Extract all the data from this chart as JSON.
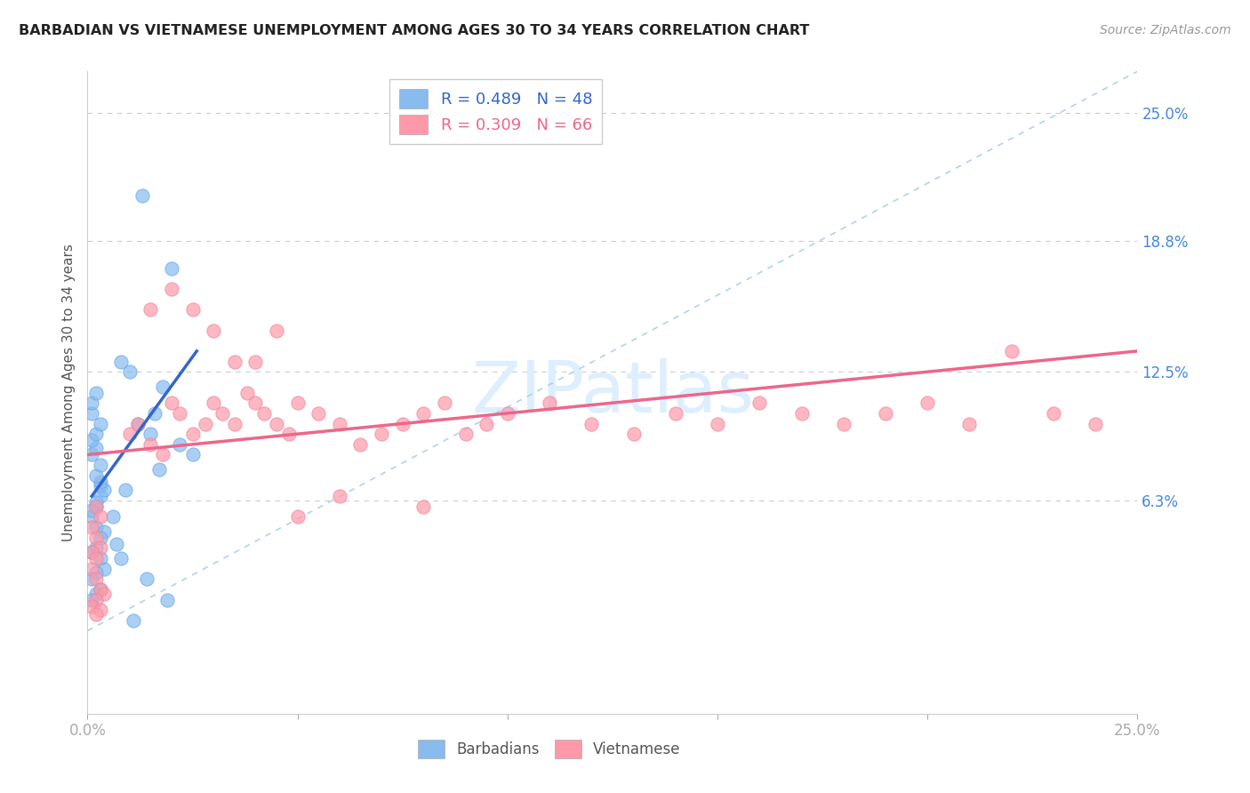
{
  "title": "BARBADIAN VS VIETNAMESE UNEMPLOYMENT AMONG AGES 30 TO 34 YEARS CORRELATION CHART",
  "source": "Source: ZipAtlas.com",
  "ylabel": "Unemployment Among Ages 30 to 34 years",
  "xlim": [
    0.0,
    0.25
  ],
  "ylim": [
    -0.04,
    0.27
  ],
  "barbadian_color": "#88BBEE",
  "vietnamese_color": "#FF99AA",
  "barbadian_line_color": "#3366CC",
  "vietnamese_line_color": "#EE6688",
  "dashed_line_color": "#AACCEE",
  "ytick_values": [
    0.063,
    0.125,
    0.188,
    0.25
  ],
  "ytick_labels": [
    "6.3%",
    "12.5%",
    "18.8%",
    "25.0%"
  ],
  "ytick_color": "#4488DD",
  "xtick_color": "#4488DD",
  "legend_entries": [
    {
      "label": "R = 0.489   N = 48",
      "color": "#88BBEE",
      "text_color": "#3366CC"
    },
    {
      "label": "R = 0.309   N = 66",
      "color": "#FF99AA",
      "text_color": "#EE6688"
    }
  ],
  "watermark_text": "ZIPatlas",
  "watermark_color": "#DDEEFF",
  "grid_color": "#CCCCCC",
  "background_color": "#FFFFFF",
  "barb_x": [
    0.003,
    0.003,
    0.004,
    0.002,
    0.001,
    0.002,
    0.001,
    0.003,
    0.002,
    0.004,
    0.003,
    0.002,
    0.001,
    0.003,
    0.004,
    0.002,
    0.001,
    0.003,
    0.002,
    0.001,
    0.002,
    0.003,
    0.001,
    0.002,
    0.001,
    0.002,
    0.003,
    0.001,
    0.001,
    0.002,
    0.01,
    0.008,
    0.012,
    0.015,
    0.018,
    0.02,
    0.022,
    0.025,
    0.013,
    0.016,
    0.017,
    0.009,
    0.006,
    0.007,
    0.008,
    0.014,
    0.019,
    0.011
  ],
  "barb_y": [
    0.065,
    0.07,
    0.068,
    0.06,
    0.055,
    0.062,
    0.058,
    0.072,
    0.05,
    0.048,
    0.045,
    0.04,
    0.038,
    0.035,
    0.03,
    0.028,
    0.025,
    0.02,
    0.018,
    0.015,
    0.075,
    0.08,
    0.085,
    0.088,
    0.092,
    0.095,
    0.1,
    0.105,
    0.11,
    0.115,
    0.125,
    0.13,
    0.1,
    0.095,
    0.118,
    0.175,
    0.09,
    0.085,
    0.21,
    0.105,
    0.078,
    0.068,
    0.055,
    0.042,
    0.035,
    0.025,
    0.015,
    0.005
  ],
  "viet_x": [
    0.002,
    0.003,
    0.001,
    0.002,
    0.003,
    0.001,
    0.002,
    0.001,
    0.002,
    0.003,
    0.004,
    0.002,
    0.001,
    0.003,
    0.002,
    0.01,
    0.012,
    0.015,
    0.018,
    0.02,
    0.022,
    0.025,
    0.028,
    0.03,
    0.032,
    0.035,
    0.038,
    0.04,
    0.042,
    0.045,
    0.048,
    0.05,
    0.055,
    0.06,
    0.065,
    0.07,
    0.075,
    0.08,
    0.085,
    0.09,
    0.095,
    0.1,
    0.11,
    0.12,
    0.13,
    0.14,
    0.15,
    0.16,
    0.17,
    0.18,
    0.19,
    0.2,
    0.21,
    0.22,
    0.23,
    0.24,
    0.015,
    0.02,
    0.025,
    0.03,
    0.035,
    0.04,
    0.045,
    0.05,
    0.06,
    0.08
  ],
  "viet_y": [
    0.06,
    0.055,
    0.05,
    0.045,
    0.04,
    0.038,
    0.035,
    0.03,
    0.025,
    0.02,
    0.018,
    0.015,
    0.012,
    0.01,
    0.008,
    0.095,
    0.1,
    0.09,
    0.085,
    0.11,
    0.105,
    0.095,
    0.1,
    0.11,
    0.105,
    0.1,
    0.115,
    0.11,
    0.105,
    0.1,
    0.095,
    0.11,
    0.105,
    0.1,
    0.09,
    0.095,
    0.1,
    0.105,
    0.11,
    0.095,
    0.1,
    0.105,
    0.11,
    0.1,
    0.095,
    0.105,
    0.1,
    0.11,
    0.105,
    0.1,
    0.105,
    0.11,
    0.1,
    0.135,
    0.105,
    0.1,
    0.155,
    0.165,
    0.155,
    0.145,
    0.13,
    0.13,
    0.145,
    0.055,
    0.065,
    0.06
  ],
  "barb_line_x": [
    0.001,
    0.026
  ],
  "barb_line_y": [
    0.065,
    0.135
  ],
  "viet_line_x": [
    0.0,
    0.25
  ],
  "viet_line_y": [
    0.085,
    0.135
  ],
  "diag_line_x": [
    0.0,
    0.25
  ],
  "diag_line_y": [
    0.0,
    0.27
  ]
}
